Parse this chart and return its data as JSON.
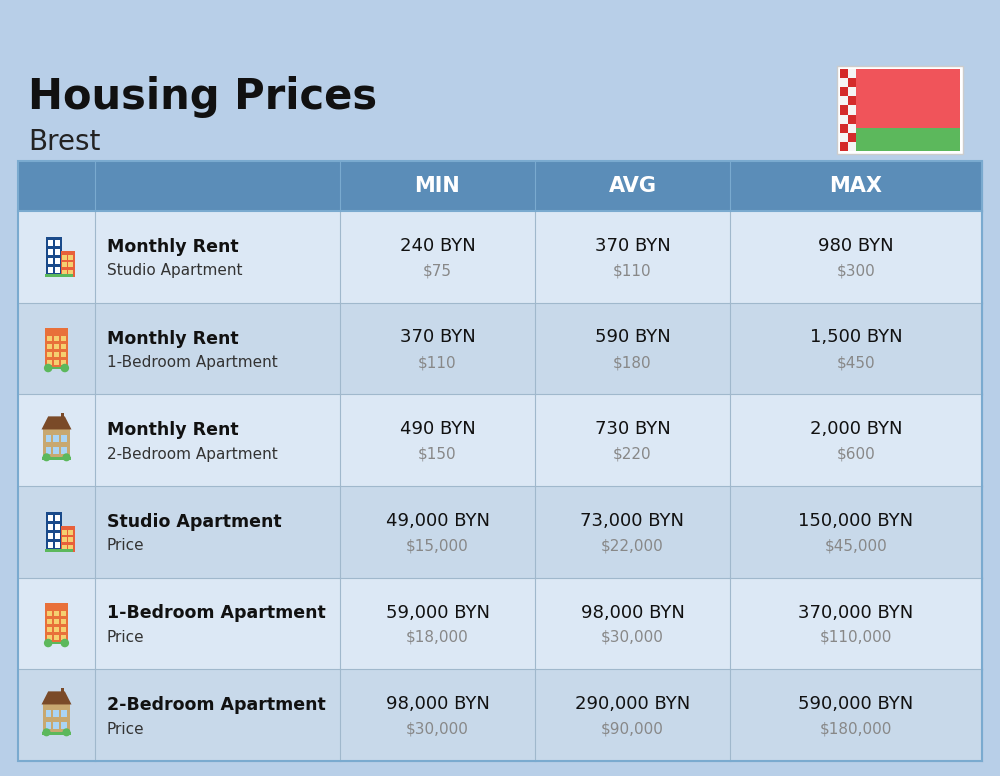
{
  "title": "Housing Prices",
  "subtitle": "Brest",
  "background_color": "#b8cfe8",
  "header_bg_color": "#5b8db8",
  "header_text_color": "#ffffff",
  "row_bg_light": "#dce8f5",
  "row_bg_dark": "#c8d9ea",
  "col_headers": [
    "MIN",
    "AVG",
    "MAX"
  ],
  "rows": [
    {
      "bold_label": "Monthly Rent",
      "sub_label": "Studio Apartment",
      "icon_type": "blue_studio",
      "min_byn": "240 BYN",
      "min_usd": "$75",
      "avg_byn": "370 BYN",
      "avg_usd": "$110",
      "max_byn": "980 BYN",
      "max_usd": "$300"
    },
    {
      "bold_label": "Monthly Rent",
      "sub_label": "1-Bedroom Apartment",
      "icon_type": "orange_one",
      "min_byn": "370 BYN",
      "min_usd": "$110",
      "avg_byn": "590 BYN",
      "avg_usd": "$180",
      "max_byn": "1,500 BYN",
      "max_usd": "$450"
    },
    {
      "bold_label": "Monthly Rent",
      "sub_label": "2-Bedroom Apartment",
      "icon_type": "tan_two",
      "min_byn": "490 BYN",
      "min_usd": "$150",
      "avg_byn": "730 BYN",
      "avg_usd": "$220",
      "max_byn": "2,000 BYN",
      "max_usd": "$600"
    },
    {
      "bold_label": "Studio Apartment",
      "sub_label": "Price",
      "icon_type": "blue_studio",
      "min_byn": "49,000 BYN",
      "min_usd": "$15,000",
      "avg_byn": "73,000 BYN",
      "avg_usd": "$22,000",
      "max_byn": "150,000 BYN",
      "max_usd": "$45,000"
    },
    {
      "bold_label": "1-Bedroom Apartment",
      "sub_label": "Price",
      "icon_type": "orange_one",
      "min_byn": "59,000 BYN",
      "min_usd": "$18,000",
      "avg_byn": "98,000 BYN",
      "avg_usd": "$30,000",
      "max_byn": "370,000 BYN",
      "max_usd": "$110,000"
    },
    {
      "bold_label": "2-Bedroom Apartment",
      "sub_label": "Price",
      "icon_type": "tan_two",
      "min_byn": "98,000 BYN",
      "min_usd": "$30,000",
      "avg_byn": "290,000 BYN",
      "avg_usd": "$90,000",
      "max_byn": "590,000 BYN",
      "max_usd": "$180,000"
    }
  ]
}
